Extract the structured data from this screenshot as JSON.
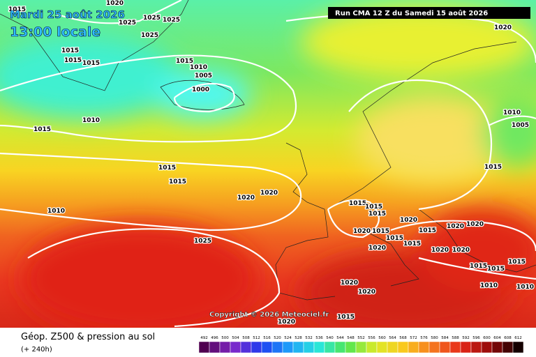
{
  "header": {
    "date": "Mardi 25 août 2026",
    "time": "13:00 locale",
    "run": "Run CMA 12 Z du Samedi 15 août 2026"
  },
  "copyright": "Copyright © 2026 Meteociel.fr",
  "footer": {
    "title": "Géop. Z500 & pression au sol",
    "lead": "(+ 240h)"
  },
  "legend": {
    "values": [
      492,
      496,
      500,
      504,
      508,
      512,
      516,
      520,
      524,
      528,
      532,
      536,
      540,
      544,
      548,
      552,
      556,
      560,
      564,
      568,
      572,
      576,
      580,
      584,
      588,
      592,
      596,
      600,
      604,
      608,
      612
    ]
  },
  "isobar_labels": [
    1015,
    1020,
    1025,
    1025,
    1025,
    1025,
    1015,
    1015,
    1015,
    1015,
    1010,
    1005,
    1000,
    1010,
    1015,
    1015,
    1015,
    1020,
    1020,
    1010,
    1025,
    1020,
    1010,
    1005,
    1015,
    1015,
    1015,
    1015,
    1020,
    1015,
    1015,
    1020,
    1015,
    1020,
    1020,
    1020,
    1015,
    1020,
    1020,
    1015,
    1015,
    1015,
    1010,
    1010,
    1020,
    1020,
    1020,
    1015
  ]
}
